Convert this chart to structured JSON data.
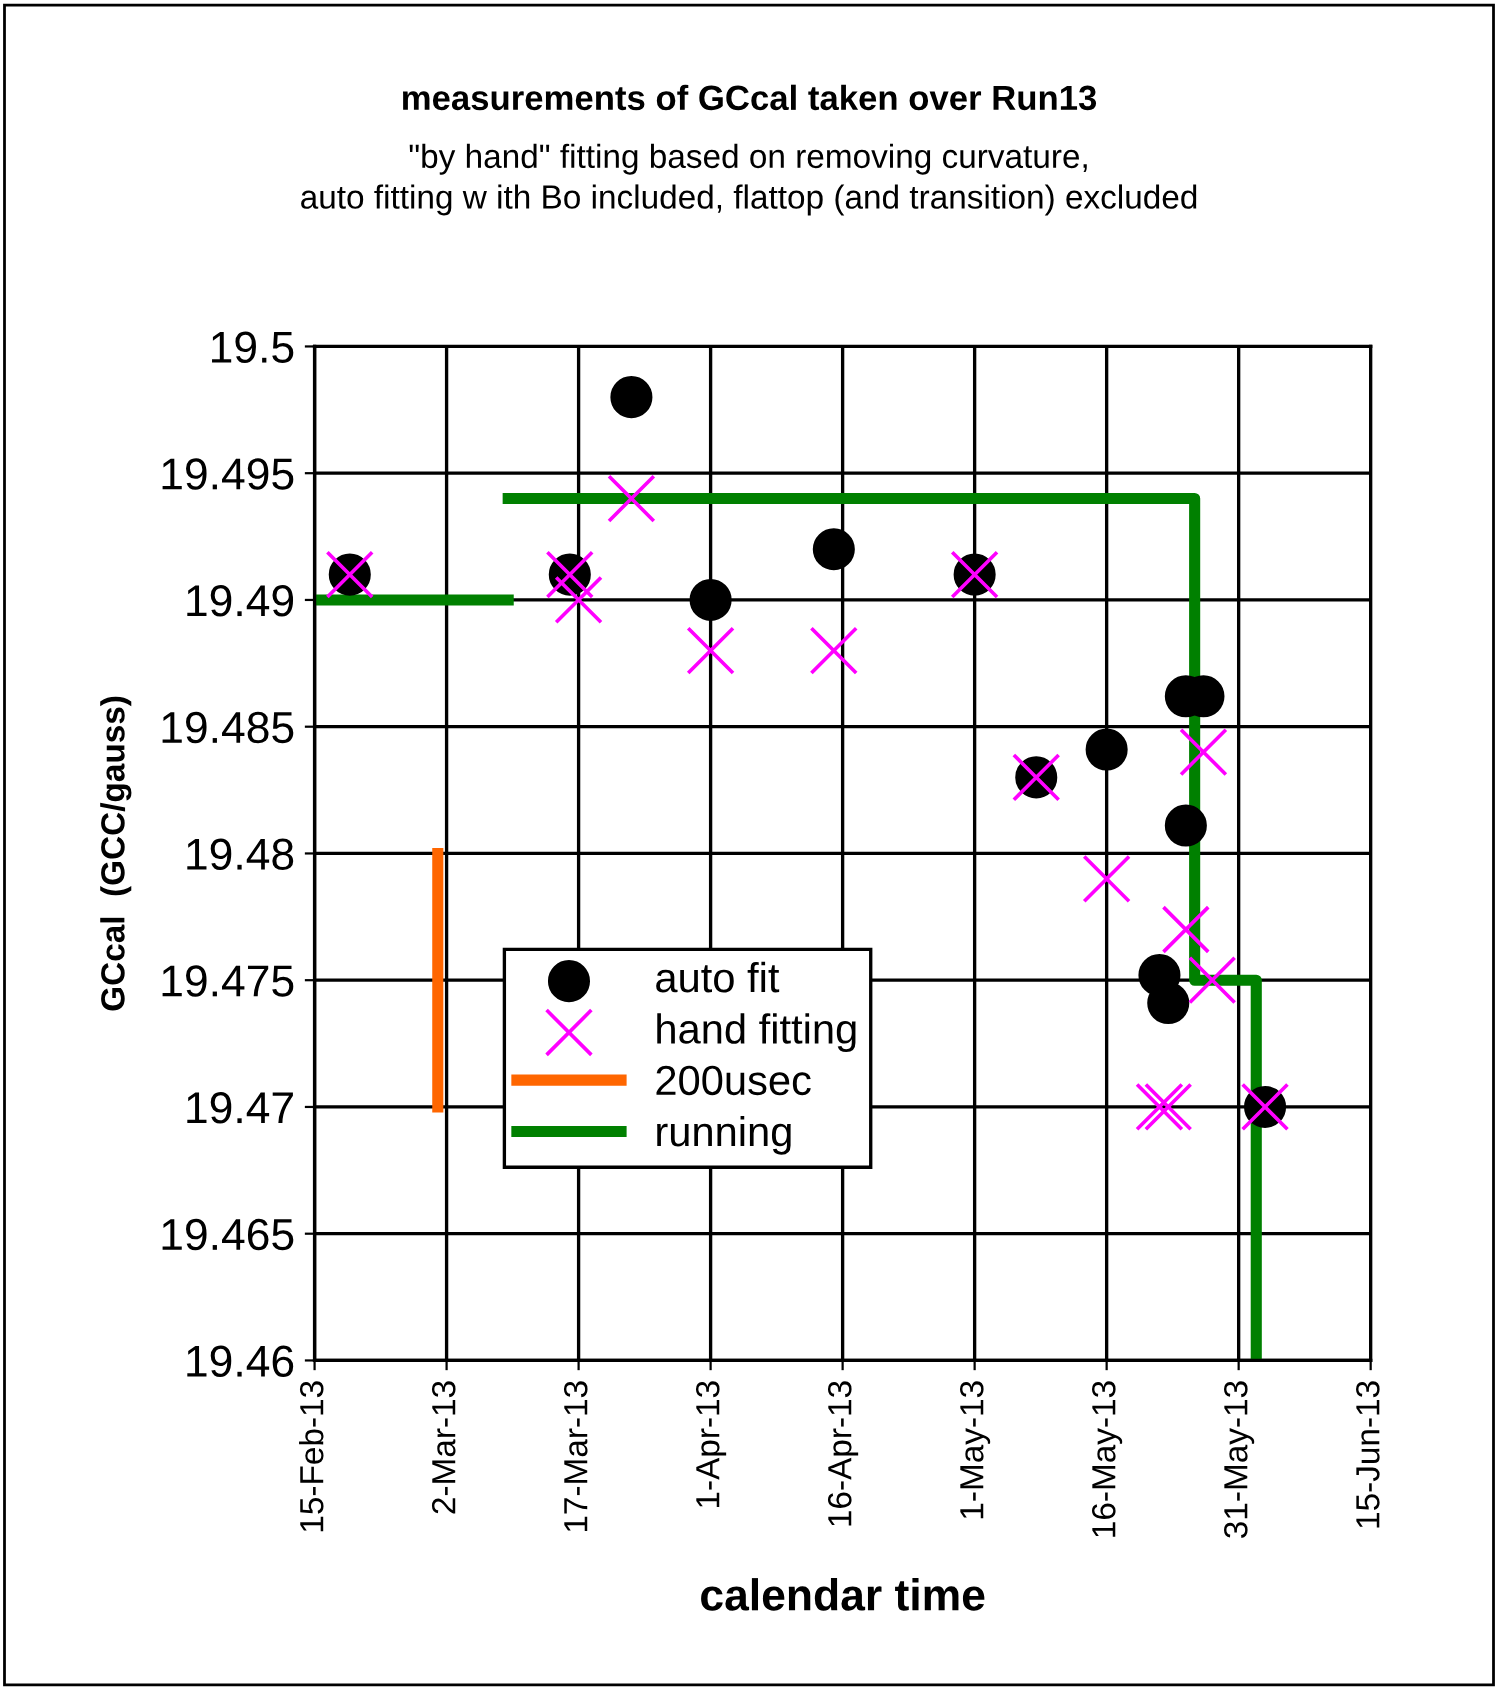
{
  "chart_data": {
    "type": "scatter",
    "title": "measurements of GCcal taken over Run13",
    "subtitle": "\"by hand\" fitting based on removing curvature,\nauto fitting w ith Bo included, flattop (and transition) excluded",
    "xlabel": "calendar time",
    "ylabel": "GCcal  (GCC/gauss)",
    "xlim": [
      "2013-02-15",
      "2013-06-15"
    ],
    "xticks": [
      {
        "value": "2013-02-15",
        "label": "15-Feb-13"
      },
      {
        "value": "2013-03-02",
        "label": "2-Mar-13"
      },
      {
        "value": "2013-03-17",
        "label": "17-Mar-13"
      },
      {
        "value": "2013-04-01",
        "label": "1-Apr-13"
      },
      {
        "value": "2013-04-16",
        "label": "16-Apr-13"
      },
      {
        "value": "2013-05-01",
        "label": "1-May-13"
      },
      {
        "value": "2013-05-16",
        "label": "16-May-13"
      },
      {
        "value": "2013-05-31",
        "label": "31-May-13"
      },
      {
        "value": "2013-06-15",
        "label": "15-Jun-13"
      }
    ],
    "ylim": [
      19.46,
      19.5
    ],
    "yticks": [
      19.46,
      19.465,
      19.47,
      19.475,
      19.48,
      19.485,
      19.49,
      19.495,
      19.5
    ],
    "grid": true,
    "legend": "bottom left",
    "series": [
      {
        "name": "auto fit",
        "marker": "circle",
        "color": "#000000",
        "x": [
          "2013-02-19",
          "2013-03-16",
          "2013-03-23",
          "2013-04-01",
          "2013-04-15",
          "2013-05-01",
          "2013-05-08",
          "2013-05-16",
          "2013-05-25",
          "2013-05-27",
          "2013-05-25",
          "2013-05-22",
          "2013-05-23",
          "2013-06-03"
        ],
        "values": [
          19.491,
          19.491,
          19.498,
          19.49,
          19.492,
          19.491,
          19.483,
          19.4841,
          19.4862,
          19.4862,
          19.4811,
          19.4752,
          19.4741,
          19.47
        ]
      },
      {
        "name": "hand fitting",
        "marker": "cross",
        "color": "#ff00ff",
        "x": [
          "2013-02-19",
          "2013-03-16",
          "2013-03-17",
          "2013-03-23",
          "2013-04-01",
          "2013-04-15",
          "2013-05-01",
          "2013-05-08",
          "2013-05-16",
          "2013-05-27",
          "2013-05-25",
          "2013-05-28",
          "2013-05-22",
          "2013-05-23",
          "2013-06-03"
        ],
        "values": [
          19.491,
          19.491,
          19.49,
          19.494,
          19.488,
          19.488,
          19.491,
          19.483,
          19.479,
          19.484,
          19.477,
          19.475,
          19.47,
          19.47,
          19.47
        ]
      },
      {
        "name": "200usec",
        "type": "line",
        "marker": "none",
        "color": "#ff6600",
        "x": [
          "2013-03-01",
          "2013-03-01"
        ],
        "values": [
          19.48,
          19.47
        ]
      },
      {
        "type": "line",
        "marker": "none",
        "color": "#008000",
        "x": [
          "2013-02-15",
          "2013-03-09"
        ],
        "values": [
          19.49,
          19.49
        ]
      },
      {
        "name": "running",
        "type": "line",
        "marker": "none",
        "color": "#008000",
        "x": [
          "2013-03-09",
          "2013-05-26",
          "2013-05-26",
          "2013-06-02",
          "2013-06-02"
        ],
        "values": [
          19.494,
          19.494,
          19.475,
          19.475,
          19.46
        ]
      }
    ]
  }
}
